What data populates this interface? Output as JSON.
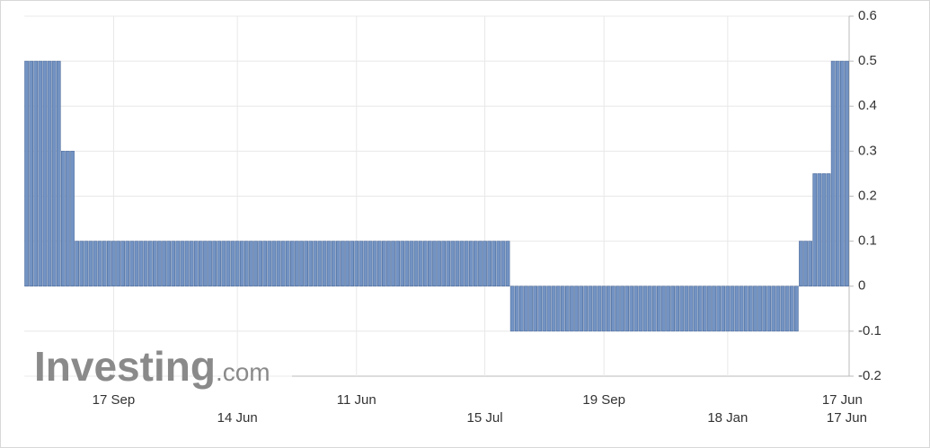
{
  "chart_data": {
    "type": "bar",
    "watermark": "Investing",
    "watermark_suffix": ".com",
    "categories": [
      null,
      null,
      null,
      null,
      null,
      null,
      null,
      null,
      null,
      null,
      null,
      null,
      null,
      null,
      null,
      null,
      null,
      null,
      null,
      "17 Sep",
      null,
      null,
      null,
      null,
      null,
      null,
      null,
      null,
      null,
      null,
      null,
      null,
      null,
      null,
      null,
      null,
      null,
      null,
      null,
      null,
      null,
      null,
      null,
      null,
      null,
      null,
      "14 Jun",
      null,
      null,
      null,
      null,
      null,
      null,
      null,
      null,
      null,
      null,
      null,
      null,
      null,
      null,
      null,
      null,
      null,
      null,
      null,
      null,
      null,
      null,
      null,
      null,
      null,
      "11 Jun",
      null,
      null,
      null,
      null,
      null,
      null,
      null,
      null,
      null,
      null,
      null,
      null,
      null,
      null,
      null,
      null,
      null,
      null,
      null,
      null,
      null,
      null,
      null,
      null,
      null,
      null,
      null,
      "15 Jul",
      null,
      null,
      null,
      null,
      null,
      null,
      null,
      null,
      null,
      null,
      null,
      null,
      null,
      null,
      null,
      null,
      null,
      null,
      null,
      null,
      null,
      null,
      null,
      null,
      null,
      "19 Sep",
      null,
      null,
      null,
      null,
      null,
      null,
      null,
      null,
      null,
      null,
      null,
      null,
      null,
      null,
      null,
      null,
      null,
      null,
      null,
      null,
      null,
      null,
      null,
      null,
      null,
      null,
      "18 Jan",
      null,
      null,
      null,
      null,
      null,
      null,
      null,
      null,
      null,
      null,
      null,
      null,
      null,
      null,
      null,
      null,
      null,
      null,
      null,
      null,
      null,
      null,
      null,
      null,
      "17 Jun",
      "17 Jun"
    ],
    "values": [
      0.5,
      0.5,
      0.5,
      0.5,
      0.5,
      0.5,
      0.5,
      0.5,
      0.3,
      0.3,
      0.3,
      0.1,
      0.1,
      0.1,
      0.1,
      0.1,
      0.1,
      0.1,
      0.1,
      0.1,
      0.1,
      0.1,
      0.1,
      0.1,
      0.1,
      0.1,
      0.1,
      0.1,
      0.1,
      0.1,
      0.1,
      0.1,
      0.1,
      0.1,
      0.1,
      0.1,
      0.1,
      0.1,
      0.1,
      0.1,
      0.1,
      0.1,
      0.1,
      0.1,
      0.1,
      0.1,
      0.1,
      0.1,
      0.1,
      0.1,
      0.1,
      0.1,
      0.1,
      0.1,
      0.1,
      0.1,
      0.1,
      0.1,
      0.1,
      0.1,
      0.1,
      0.1,
      0.1,
      0.1,
      0.1,
      0.1,
      0.1,
      0.1,
      0.1,
      0.1,
      0.1,
      0.1,
      0.1,
      0.1,
      0.1,
      0.1,
      0.1,
      0.1,
      0.1,
      0.1,
      0.1,
      0.1,
      0.1,
      0.1,
      0.1,
      0.1,
      0.1,
      0.1,
      0.1,
      0.1,
      0.1,
      0.1,
      0.1,
      0.1,
      0.1,
      0.1,
      0.1,
      0.1,
      0.1,
      0.1,
      0.1,
      0.1,
      0.1,
      0.1,
      0.1,
      0.1,
      -0.1,
      -0.1,
      -0.1,
      -0.1,
      -0.1,
      -0.1,
      -0.1,
      -0.1,
      -0.1,
      -0.1,
      -0.1,
      -0.1,
      -0.1,
      -0.1,
      -0.1,
      -0.1,
      -0.1,
      -0.1,
      -0.1,
      -0.1,
      -0.1,
      -0.1,
      -0.1,
      -0.1,
      -0.1,
      -0.1,
      -0.1,
      -0.1,
      -0.1,
      -0.1,
      -0.1,
      -0.1,
      -0.1,
      -0.1,
      -0.1,
      -0.1,
      -0.1,
      -0.1,
      -0.1,
      -0.1,
      -0.1,
      -0.1,
      -0.1,
      -0.1,
      -0.1,
      -0.1,
      -0.1,
      -0.1,
      -0.1,
      -0.1,
      -0.1,
      -0.1,
      -0.1,
      -0.1,
      -0.1,
      -0.1,
      -0.1,
      -0.1,
      -0.1,
      -0.1,
      -0.1,
      -0.1,
      -0.1,
      0.1,
      0.1,
      0.1,
      0.25,
      0.25,
      0.25,
      0.25,
      0.5,
      0.5,
      0.5,
      0.5
    ],
    "color": "#7393c3",
    "edge_color": "#4d6c9c",
    "ylim": [
      -0.2,
      0.6
    ],
    "yticks": [
      -0.2,
      -0.1,
      0,
      0.1,
      0.2,
      0.3,
      0.4,
      0.5,
      0.6
    ],
    "grid": true
  }
}
